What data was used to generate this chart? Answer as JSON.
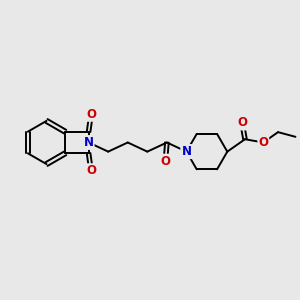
{
  "bg_color": "#e8e8e8",
  "bond_color": "#000000",
  "N_color": "#0000cc",
  "O_color": "#cc0000",
  "bond_width": 1.4,
  "font_size": 8.5,
  "fig_size": [
    3.0,
    3.0
  ],
  "xlim": [
    0,
    10
  ],
  "ylim": [
    2,
    8
  ]
}
